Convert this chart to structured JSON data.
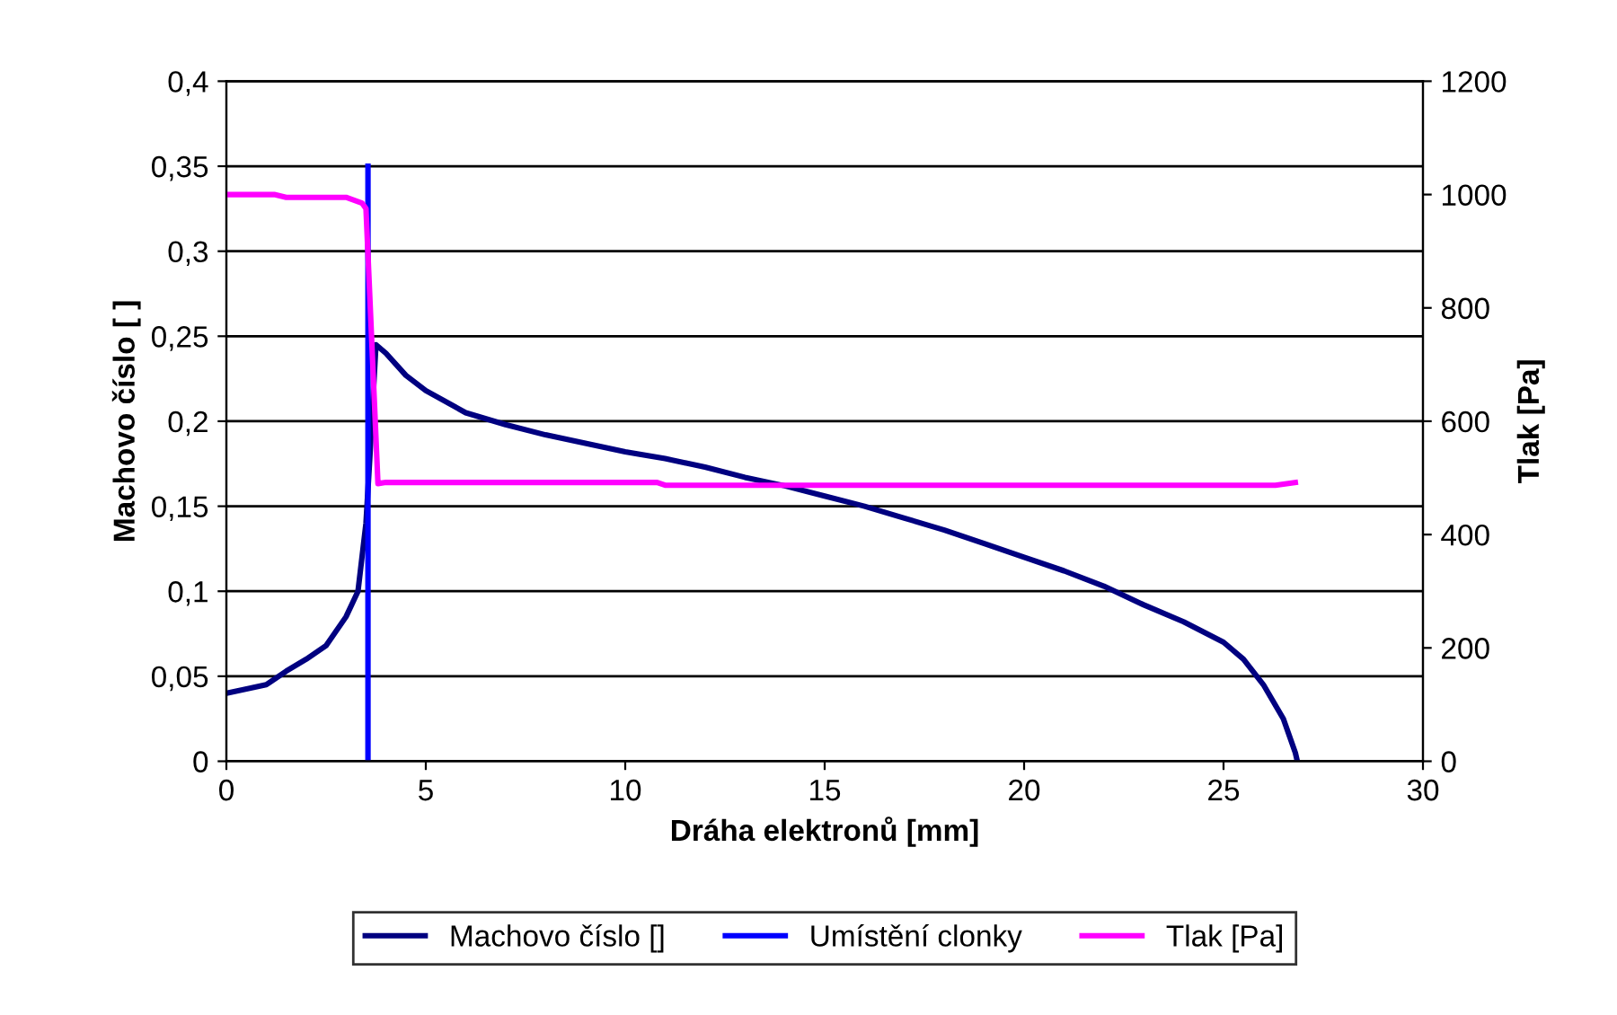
{
  "chart_data": {
    "type": "line",
    "xlabel": "Dráha elektronů [mm]",
    "ylabel": "Machovo číslo [ ]",
    "y2label": "Tlak [Pa]",
    "xlim": [
      0,
      30
    ],
    "xticks": [
      0,
      5,
      10,
      15,
      20,
      25,
      30
    ],
    "ylim": [
      0,
      0.4
    ],
    "yticks": [
      0,
      {
        "value": 0.05,
        "label": "0,05"
      },
      {
        "value": 0.1,
        "label": "0,1"
      },
      {
        "value": 0.15,
        "label": "0,15"
      },
      {
        "value": 0.2,
        "label": "0,2"
      },
      {
        "value": 0.25,
        "label": "0,25"
      },
      {
        "value": 0.3,
        "label": "0,3"
      },
      {
        "value": 0.35,
        "label": "0,35"
      },
      {
        "value": 0.4,
        "label": "0,4"
      }
    ],
    "y2lim": [
      0,
      1200
    ],
    "y2ticks": [
      0,
      200,
      400,
      600,
      800,
      1000,
      1200
    ],
    "grid": "y",
    "legend": "bottom",
    "series": [
      {
        "name": "Machovo číslo []",
        "color": "#000080",
        "x": [
          0,
          1,
          1.5,
          2,
          2.5,
          3,
          3.3,
          3.5,
          3.6,
          3.75,
          4,
          4.5,
          5,
          6,
          7,
          8,
          9,
          10,
          11,
          12,
          13,
          14,
          15,
          16,
          17,
          18,
          19,
          20,
          21,
          22,
          23,
          24,
          25,
          25.5,
          26,
          26.5,
          26.8,
          26.85
        ],
        "values": [
          0.04,
          0.045,
          0.053,
          0.06,
          0.068,
          0.085,
          0.1,
          0.14,
          0.18,
          0.245,
          0.24,
          0.227,
          0.218,
          0.205,
          0.198,
          0.192,
          0.187,
          0.182,
          0.178,
          0.173,
          0.167,
          0.162,
          0.156,
          0.15,
          0.143,
          0.136,
          0.128,
          0.12,
          0.112,
          0.103,
          0.092,
          0.082,
          0.07,
          0.06,
          0.045,
          0.025,
          0.005,
          0
        ]
      },
      {
        "name": "Umístění clonky",
        "color": "#0000ff",
        "x": [
          3.55,
          3.55
        ],
        "values": [
          0,
          0.35
        ]
      },
      {
        "name": "Tlak [Pa]",
        "color": "#ff00ff",
        "axis": "y2",
        "x": [
          0,
          1.2,
          1.5,
          3,
          3.4,
          3.5,
          3.8,
          4,
          10.8,
          11,
          26.3,
          26.8
        ],
        "values": [
          1000,
          1000,
          995,
          995,
          985,
          975,
          490,
          492,
          492,
          487,
          487,
          492
        ]
      }
    ]
  }
}
